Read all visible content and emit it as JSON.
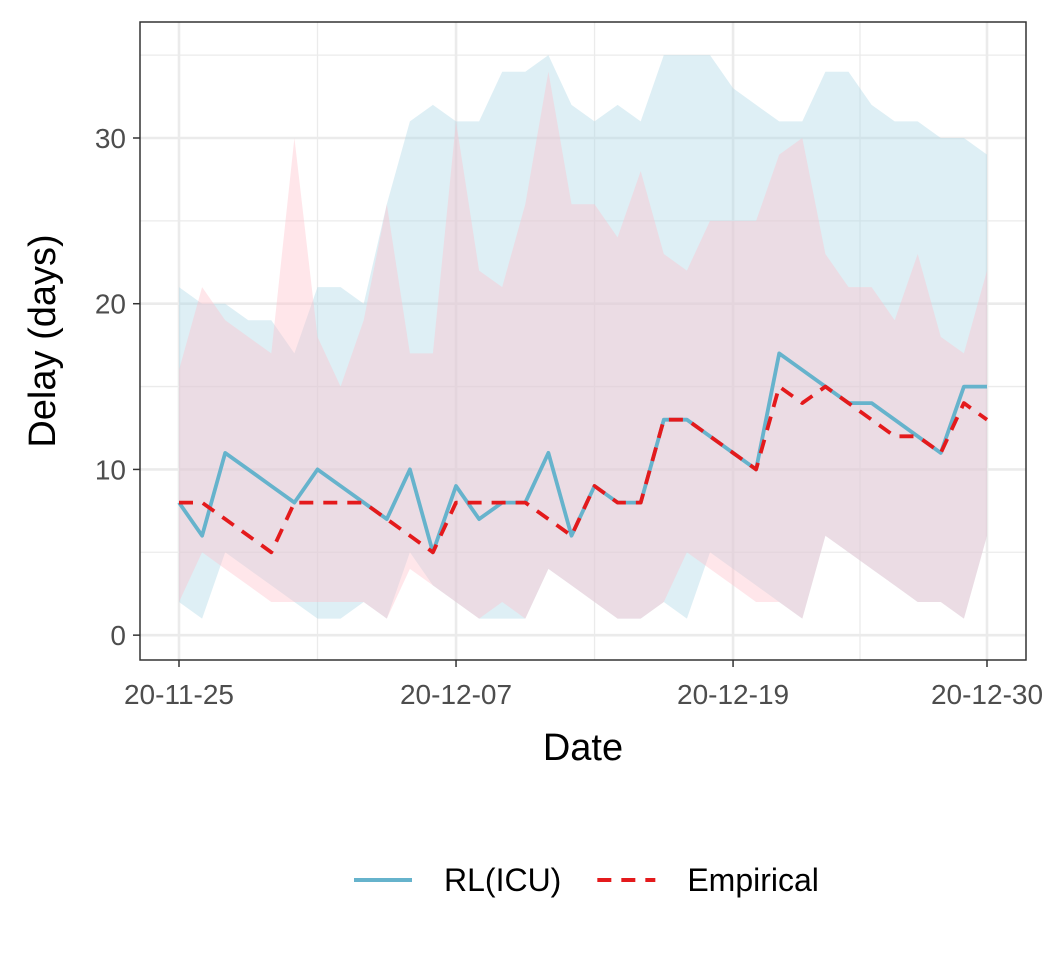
{
  "chart_data": {
    "type": "line",
    "xlabel": "Date",
    "ylabel": "Delay (days)",
    "x_tick_labels": [
      "20-11-25",
      "20-12-07",
      "20-12-19",
      "20-12-30"
    ],
    "y_tick_labels": [
      "0",
      "10",
      "20",
      "30"
    ],
    "ylim": [
      -1.5,
      37
    ],
    "grid": true,
    "legend_position": "bottom",
    "x": [
      "2020-11-25",
      "2020-11-26",
      "2020-11-27",
      "2020-11-28",
      "2020-11-29",
      "2020-11-30",
      "2020-12-01",
      "2020-12-02",
      "2020-12-03",
      "2020-12-04",
      "2020-12-05",
      "2020-12-06",
      "2020-12-07",
      "2020-12-08",
      "2020-12-09",
      "2020-12-10",
      "2020-12-11",
      "2020-12-12",
      "2020-12-13",
      "2020-12-14",
      "2020-12-15",
      "2020-12-16",
      "2020-12-17",
      "2020-12-18",
      "2020-12-19",
      "2020-12-20",
      "2020-12-21",
      "2020-12-22",
      "2020-12-23",
      "2020-12-24",
      "2020-12-25",
      "2020-12-26",
      "2020-12-27",
      "2020-12-28",
      "2020-12-29",
      "2020-12-30"
    ],
    "series": [
      {
        "name": "RL(ICU)",
        "color": "#66b3cc",
        "band_color": "#add8e6",
        "line_style": "solid",
        "values": [
          8,
          6,
          11,
          10,
          9,
          8,
          10,
          9,
          8,
          7,
          10,
          5,
          9,
          7,
          8,
          8,
          11,
          6,
          9,
          8,
          8,
          13,
          13,
          12,
          11,
          10,
          17,
          16,
          15,
          14,
          14,
          13,
          12,
          11,
          15,
          15
        ],
        "lower": [
          2,
          1,
          5,
          4,
          3,
          2,
          1,
          1,
          2,
          1,
          5,
          3,
          2,
          1,
          1,
          1,
          4,
          3,
          2,
          1,
          1,
          2,
          1,
          5,
          4,
          3,
          2,
          1,
          6,
          5,
          4,
          3,
          2,
          2,
          1,
          6
        ],
        "upper": [
          21,
          20,
          20,
          19,
          19,
          17,
          21,
          21,
          20,
          26,
          31,
          32,
          31,
          31,
          34,
          34,
          35,
          32,
          31,
          32,
          31,
          35,
          35,
          35,
          33,
          32,
          31,
          31,
          34,
          34,
          32,
          31,
          31,
          30,
          30,
          29
        ]
      },
      {
        "name": "Empirical",
        "color": "#e41a1c",
        "band_color": "#ffc0cb",
        "line_style": "dashed",
        "values": [
          8,
          8,
          7,
          6,
          5,
          8,
          8,
          8,
          8,
          7,
          6,
          5,
          8,
          8,
          8,
          8,
          7,
          6,
          9,
          8,
          8,
          13,
          13,
          12,
          11,
          10,
          15,
          14,
          15,
          14,
          13,
          12,
          12,
          11,
          14,
          13
        ],
        "lower": [
          2,
          5,
          4,
          3,
          2,
          2,
          2,
          2,
          2,
          1,
          4,
          3,
          2,
          1,
          2,
          1,
          4,
          3,
          2,
          1,
          1,
          2,
          5,
          4,
          3,
          2,
          2,
          1,
          6,
          5,
          4,
          3,
          2,
          2,
          1,
          6
        ],
        "upper": [
          16,
          21,
          19,
          18,
          17,
          30,
          18,
          15,
          19,
          26,
          17,
          17,
          31,
          22,
          21,
          26,
          34,
          26,
          26,
          24,
          28,
          23,
          22,
          25,
          25,
          25,
          29,
          30,
          23,
          21,
          21,
          19,
          23,
          18,
          17,
          22
        ]
      }
    ]
  }
}
